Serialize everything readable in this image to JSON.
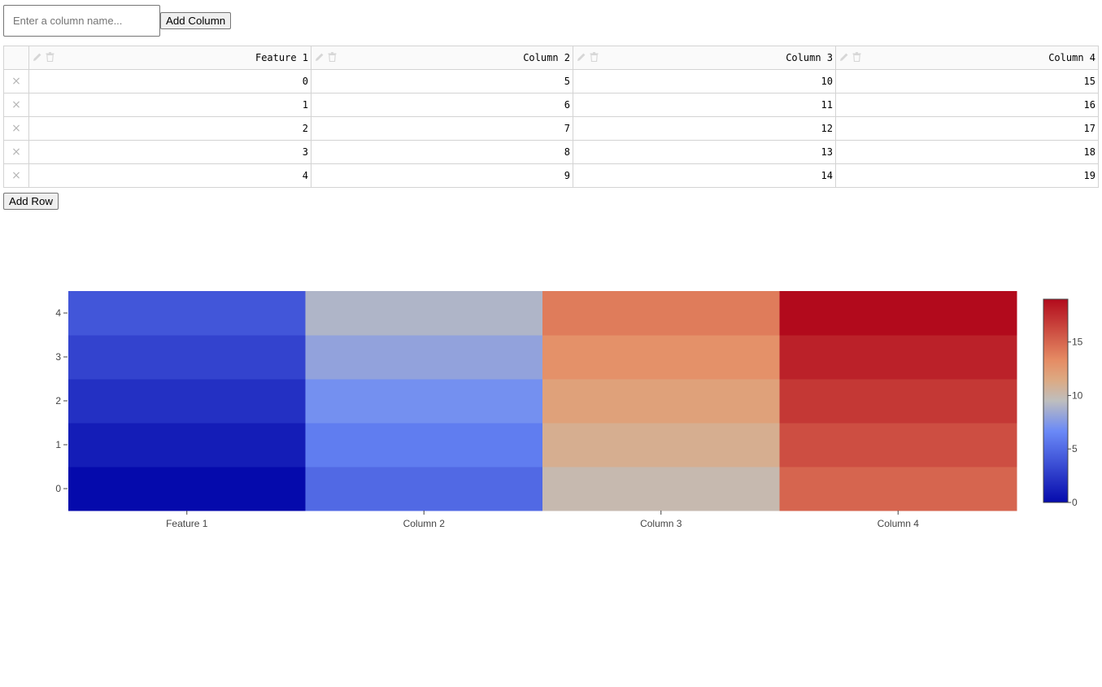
{
  "controls": {
    "column_placeholder": "Enter a column name...",
    "add_column_label": "Add Column",
    "add_row_label": "Add Row"
  },
  "table": {
    "columns": [
      "Feature 1",
      "Column 2",
      "Column 3",
      "Column 4"
    ],
    "rows": [
      [
        0,
        5,
        10,
        15
      ],
      [
        1,
        6,
        11,
        16
      ],
      [
        2,
        7,
        12,
        17
      ],
      [
        3,
        8,
        13,
        18
      ],
      [
        4,
        9,
        14,
        19
      ]
    ],
    "delete_glyph": "×"
  },
  "chart_data": {
    "type": "heatmap",
    "x": [
      "Feature 1",
      "Column 2",
      "Column 3",
      "Column 4"
    ],
    "y": [
      0,
      1,
      2,
      3,
      4
    ],
    "z": [
      [
        0,
        5,
        10,
        15
      ],
      [
        1,
        6,
        11,
        16
      ],
      [
        2,
        7,
        12,
        17
      ],
      [
        3,
        8,
        13,
        18
      ],
      [
        4,
        9,
        14,
        19
      ]
    ],
    "zrange": [
      0,
      19
    ],
    "colorscale": "coolwarm",
    "colorbar_ticks": [
      0,
      5,
      10,
      15
    ]
  },
  "icons": {
    "edit": "pencil-icon",
    "delete": "trash-icon",
    "row_delete": "close-icon"
  }
}
